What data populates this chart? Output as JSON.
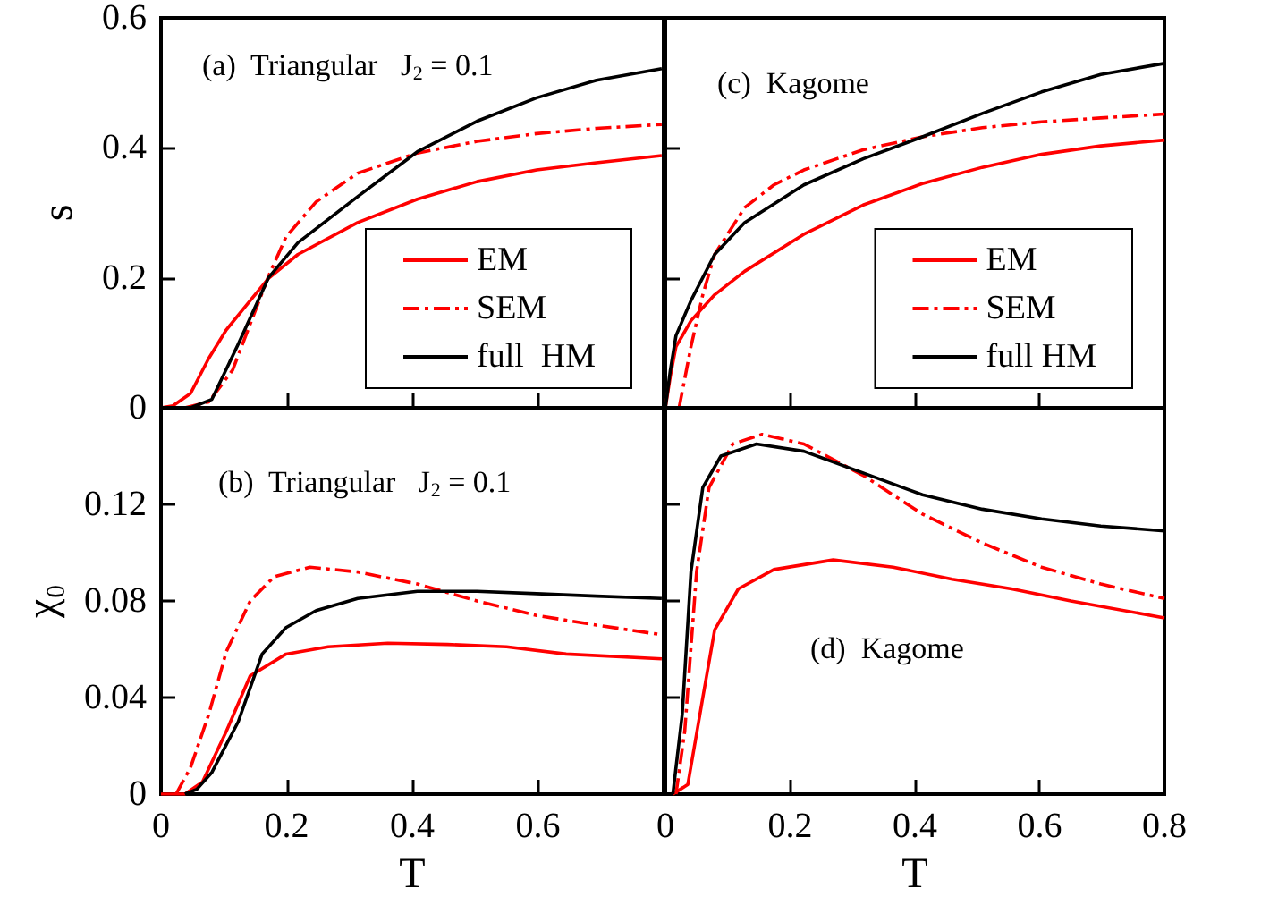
{
  "chart_data": [
    {
      "type": "line",
      "ylabel": "s",
      "annotations": [
        "(a)  Triangular   J$_{2}$ = 0.1"
      ],
      "xlim": [
        0,
        0.8
      ],
      "ylim": [
        0,
        0.6
      ],
      "xticks": [
        0,
        0.2,
        0.4,
        0.6,
        0.8
      ],
      "yticks": [
        0,
        0.2,
        0.4,
        0.6
      ],
      "tick_labels": "y",
      "legend": "bottom right",
      "grid": false,
      "marker": "none",
      "series": [
        {
          "name": "EM",
          "color": "#ff0000",
          "line_style": "solid",
          "x": [
            0,
            0.019,
            0.047,
            0.076,
            0.104,
            0.142,
            0.171,
            0.218,
            0.313,
            0.408,
            0.503,
            0.598,
            0.693,
            0.797
          ],
          "values": [
            0,
            0.003,
            0.022,
            0.076,
            0.12,
            0.165,
            0.199,
            0.236,
            0.285,
            0.321,
            0.348,
            0.366,
            0.377,
            0.388
          ]
        },
        {
          "name": "SEM",
          "color": "#ff0000",
          "line_style": "dashed",
          "x": [
            0.038,
            0.076,
            0.114,
            0.142,
            0.171,
            0.199,
            0.247,
            0.313,
            0.408,
            0.503,
            0.598,
            0.693,
            0.797
          ],
          "values": [
            0,
            0.009,
            0.058,
            0.129,
            0.202,
            0.263,
            0.317,
            0.361,
            0.392,
            0.41,
            0.422,
            0.43,
            0.436
          ]
        },
        {
          "name": "full  HM",
          "color": "#000000",
          "line_style": "solid",
          "x": [
            0.047,
            0.081,
            0.123,
            0.171,
            0.218,
            0.313,
            0.408,
            0.503,
            0.598,
            0.693,
            0.797
          ],
          "values": [
            0,
            0.013,
            0.098,
            0.2,
            0.254,
            0.325,
            0.394,
            0.441,
            0.477,
            0.504,
            0.522
          ]
        }
      ]
    },
    {
      "type": "line",
      "xlabel": "T",
      "ylabel": "χ₀",
      "annotations": [
        "(b)  Triangular   J$_{2}$ = 0.1"
      ],
      "xlim": [
        0,
        0.8
      ],
      "ylim": [
        0,
        0.16
      ],
      "xticks": [
        0,
        0.2,
        0.4,
        0.6,
        {
          "value": 0.8,
          "label": null
        }
      ],
      "yticks": [
        0,
        0.04,
        0.08,
        0.12
      ],
      "grid": false,
      "marker": "none",
      "series": [
        {
          "color": "#ff0000",
          "line_style": "solid",
          "x": [
            0,
            0.038,
            0.066,
            0.104,
            0.142,
            0.199,
            0.266,
            0.361,
            0.456,
            0.55,
            0.645,
            0.797
          ],
          "values": [
            0,
            0,
            0.005,
            0.026,
            0.049,
            0.058,
            0.061,
            0.0625,
            0.062,
            0.061,
            0.058,
            0.056
          ]
        },
        {
          "color": "#ff0000",
          "line_style": "dashed",
          "x": [
            0.024,
            0.047,
            0.076,
            0.104,
            0.142,
            0.18,
            0.237,
            0.313,
            0.408,
            0.503,
            0.598,
            0.693,
            0.797
          ],
          "values": [
            0,
            0.011,
            0.033,
            0.059,
            0.08,
            0.09,
            0.094,
            0.092,
            0.087,
            0.08,
            0.074,
            0.07,
            0.066
          ]
        },
        {
          "color": "#000000",
          "line_style": "solid",
          "x": [
            0.038,
            0.057,
            0.081,
            0.123,
            0.161,
            0.199,
            0.247,
            0.313,
            0.408,
            0.503,
            0.598,
            0.693,
            0.797
          ],
          "values": [
            0,
            0.002,
            0.009,
            0.03,
            0.058,
            0.069,
            0.076,
            0.081,
            0.084,
            0.084,
            0.083,
            0.082,
            0.081
          ]
        }
      ]
    },
    {
      "type": "line",
      "annotations": [
        "(c)  Kagome"
      ],
      "xlim": [
        0,
        0.8
      ],
      "ylim": [
        0,
        0.6
      ],
      "xticks": [
        0,
        0.2,
        0.4,
        0.6,
        0.8
      ],
      "yticks": [
        0,
        0.2,
        0.4,
        0.6
      ],
      "tick_labels": false,
      "legend": "bottom right",
      "grid": false,
      "marker": "none",
      "series": [
        {
          "name": "EM",
          "color": "#ff0000",
          "line_style": "solid",
          "x": [
            0,
            0.008,
            0.017,
            0.041,
            0.079,
            0.127,
            0.222,
            0.317,
            0.412,
            0.508,
            0.603,
            0.698,
            0.8
          ],
          "values": [
            0,
            0.049,
            0.094,
            0.134,
            0.174,
            0.21,
            0.267,
            0.312,
            0.345,
            0.37,
            0.39,
            0.403,
            0.412
          ]
        },
        {
          "name": "SEM",
          "color": "#ff0000",
          "line_style": "dashed",
          "x": [
            0.022,
            0.041,
            0.06,
            0.079,
            0.127,
            0.174,
            0.222,
            0.317,
            0.412,
            0.508,
            0.603,
            0.698,
            0.8
          ],
          "values": [
            0,
            0.094,
            0.174,
            0.236,
            0.308,
            0.343,
            0.366,
            0.397,
            0.417,
            0.431,
            0.44,
            0.446,
            0.452
          ]
        },
        {
          "name": "full HM",
          "color": "#000000",
          "line_style": "solid",
          "x": [
            0,
            0.008,
            0.017,
            0.041,
            0.079,
            0.127,
            0.222,
            0.317,
            0.412,
            0.508,
            0.603,
            0.698,
            0.8
          ],
          "values": [
            0,
            0.058,
            0.111,
            0.165,
            0.236,
            0.285,
            0.343,
            0.383,
            0.417,
            0.453,
            0.486,
            0.513,
            0.53
          ]
        }
      ]
    },
    {
      "type": "line",
      "xlabel": "T",
      "annotations": [
        "(d)  Kagome"
      ],
      "xlim": [
        0,
        0.8
      ],
      "ylim": [
        0,
        0.16
      ],
      "xticks": [
        0,
        0.2,
        0.4,
        0.6,
        0.8
      ],
      "yticks": [
        0,
        0.04,
        0.08,
        0.12
      ],
      "tick_labels": "x",
      "grid": false,
      "marker": "none",
      "series": [
        {
          "color": "#ff0000",
          "line_style": "solid",
          "x": [
            0.012,
            0.036,
            0.06,
            0.079,
            0.117,
            0.174,
            0.269,
            0.365,
            0.46,
            0.555,
            0.65,
            0.8
          ],
          "values": [
            0,
            0.004,
            0.04,
            0.068,
            0.085,
            0.093,
            0.097,
            0.094,
            0.089,
            0.085,
            0.08,
            0.073
          ]
        },
        {
          "color": "#ff0000",
          "line_style": "dashed",
          "x": [
            0.017,
            0.031,
            0.05,
            0.07,
            0.108,
            0.155,
            0.222,
            0.317,
            0.412,
            0.508,
            0.603,
            0.698,
            0.8
          ],
          "values": [
            0,
            0.026,
            0.092,
            0.127,
            0.145,
            0.149,
            0.145,
            0.132,
            0.116,
            0.104,
            0.094,
            0.087,
            0.081
          ]
        },
        {
          "color": "#000000",
          "line_style": "solid",
          "x": [
            0.012,
            0.027,
            0.041,
            0.06,
            0.089,
            0.146,
            0.222,
            0.317,
            0.412,
            0.508,
            0.603,
            0.698,
            0.8
          ],
          "values": [
            0,
            0.033,
            0.092,
            0.127,
            0.14,
            0.145,
            0.142,
            0.133,
            0.124,
            0.118,
            0.114,
            0.111,
            0.109
          ]
        }
      ]
    }
  ]
}
